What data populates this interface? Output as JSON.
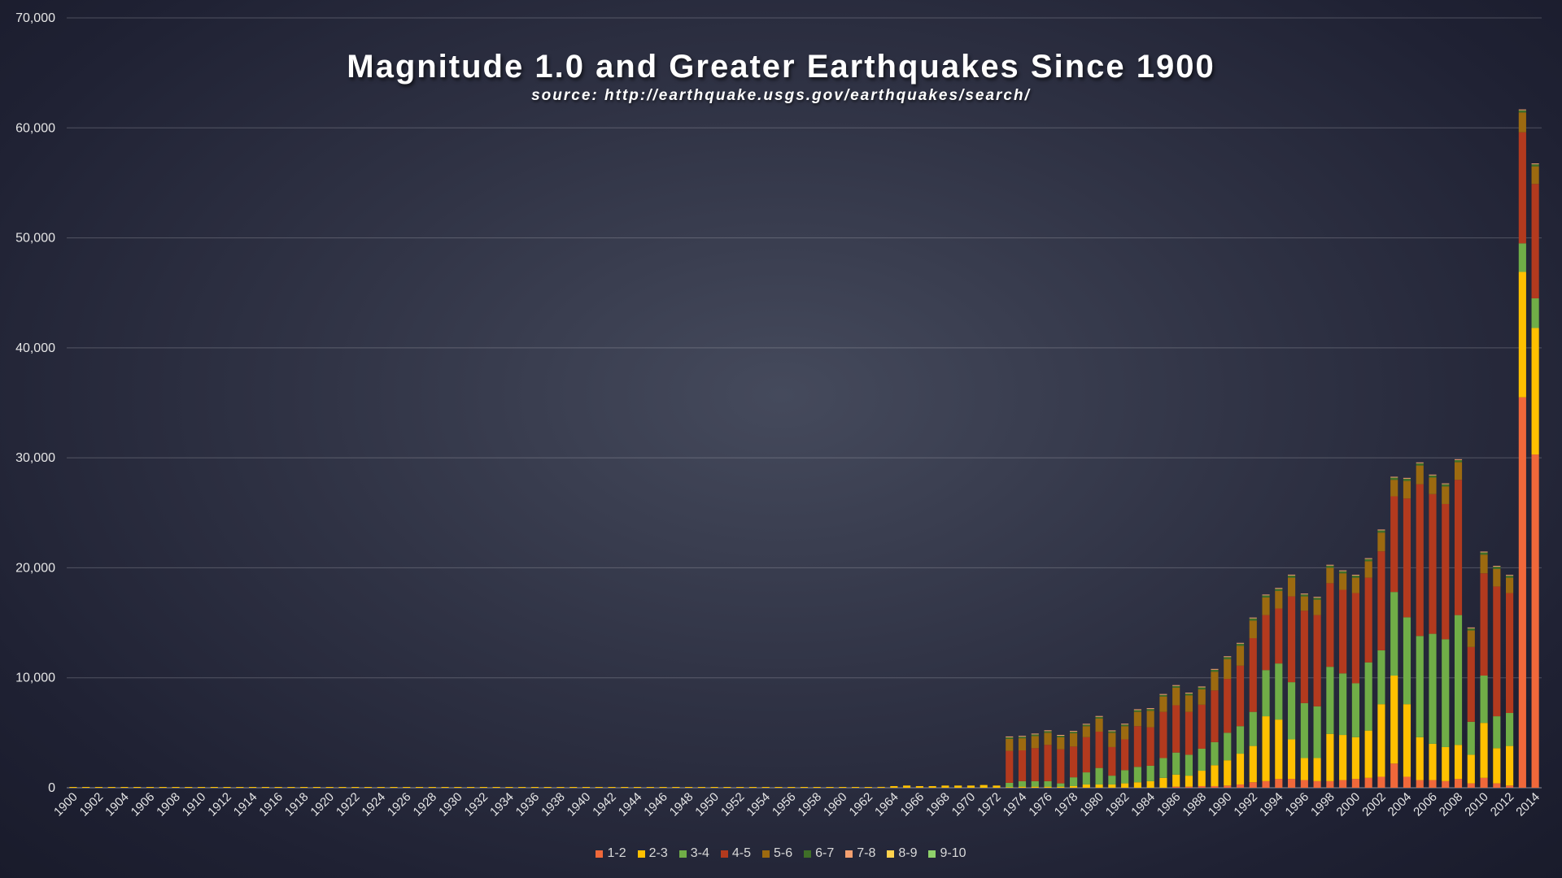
{
  "chart_data": {
    "type": "bar",
    "stacked": true,
    "title": "Magnitude 1.0 and Greater Earthquakes Since 1900",
    "subtitle": "source: http://earthquake.usgs.gov/earthquakes/search/",
    "xlabel": "",
    "ylabel": "",
    "ylim": [
      0,
      70000
    ],
    "yticks": [
      "0",
      "10,000",
      "20,000",
      "30,000",
      "40,000",
      "50,000",
      "60,000",
      "70,000"
    ],
    "grid": true,
    "legend_position": "bottom",
    "categories": [
      1900,
      1901,
      1902,
      1903,
      1904,
      1905,
      1906,
      1907,
      1908,
      1909,
      1910,
      1911,
      1912,
      1913,
      1914,
      1915,
      1916,
      1917,
      1918,
      1919,
      1920,
      1921,
      1922,
      1923,
      1924,
      1925,
      1926,
      1927,
      1928,
      1929,
      1930,
      1931,
      1932,
      1933,
      1934,
      1935,
      1936,
      1937,
      1938,
      1939,
      1940,
      1941,
      1942,
      1943,
      1944,
      1945,
      1946,
      1947,
      1948,
      1949,
      1950,
      1951,
      1952,
      1953,
      1954,
      1955,
      1956,
      1957,
      1958,
      1959,
      1960,
      1961,
      1962,
      1963,
      1964,
      1965,
      1966,
      1967,
      1968,
      1969,
      1970,
      1971,
      1972,
      1973,
      1974,
      1975,
      1976,
      1977,
      1978,
      1979,
      1980,
      1981,
      1982,
      1983,
      1984,
      1985,
      1986,
      1987,
      1988,
      1989,
      1990,
      1991,
      1992,
      1993,
      1994,
      1995,
      1996,
      1997,
      1998,
      1999,
      2000,
      2001,
      2002,
      2003,
      2004,
      2005,
      2006,
      2007,
      2008,
      2009,
      2010,
      2011,
      2012,
      2013,
      2014
    ],
    "x_tick_labels": [
      "1900",
      "1902",
      "1904",
      "1906",
      "1908",
      "1910",
      "1912",
      "1914",
      "1916",
      "1918",
      "1920",
      "1922",
      "1924",
      "1926",
      "1928",
      "1930",
      "1932",
      "1934",
      "1936",
      "1938",
      "1940",
      "1942",
      "1944",
      "1946",
      "1948",
      "1950",
      "1952",
      "1954",
      "1956",
      "1958",
      "1960",
      "1962",
      "1964",
      "1966",
      "1968",
      "1970",
      "1972",
      "1974",
      "1976",
      "1978",
      "1980",
      "1982",
      "1984",
      "1986",
      "1988",
      "1990",
      "1992",
      "1994",
      "1996",
      "1998",
      "2000",
      "2002",
      "2004",
      "2006",
      "2008",
      "2010",
      "2012",
      "2014"
    ],
    "series": [
      {
        "name": "1-2",
        "color": "#f0683a",
        "values": [
          0,
          0,
          0,
          0,
          0,
          0,
          0,
          0,
          0,
          0,
          0,
          0,
          0,
          0,
          0,
          0,
          0,
          0,
          0,
          0,
          0,
          0,
          0,
          0,
          0,
          0,
          0,
          0,
          0,
          0,
          0,
          0,
          0,
          0,
          0,
          0,
          0,
          0,
          0,
          0,
          0,
          0,
          0,
          0,
          0,
          0,
          0,
          0,
          0,
          0,
          0,
          0,
          0,
          0,
          0,
          0,
          0,
          0,
          0,
          0,
          0,
          0,
          0,
          0,
          0,
          0,
          0,
          0,
          0,
          0,
          0,
          0,
          0,
          0,
          0,
          0,
          0,
          0,
          0,
          0,
          0,
          0,
          0,
          0,
          0,
          0,
          100,
          100,
          150,
          150,
          200,
          300,
          500,
          600,
          800,
          800,
          700,
          600,
          600,
          700,
          800,
          900,
          1000,
          2200,
          1000,
          700,
          700,
          600,
          800,
          400,
          900,
          400,
          200,
          35500,
          30300
        ]
      },
      {
        "name": "2-3",
        "color": "#ffc000",
        "values": [
          20,
          15,
          40,
          60,
          50,
          40,
          50,
          60,
          70,
          50,
          60,
          40,
          50,
          40,
          30,
          20,
          20,
          40,
          60,
          60,
          50,
          40,
          40,
          50,
          60,
          50,
          40,
          50,
          50,
          40,
          40,
          50,
          50,
          60,
          40,
          40,
          50,
          50,
          40,
          40,
          50,
          40,
          50,
          40,
          40,
          40,
          40,
          40,
          50,
          50,
          50,
          40,
          40,
          40,
          40,
          40,
          50,
          50,
          50,
          50,
          50,
          60,
          70,
          80,
          150,
          200,
          150,
          150,
          200,
          200,
          200,
          250,
          200,
          50,
          100,
          100,
          100,
          100,
          150,
          300,
          300,
          300,
          400,
          500,
          600,
          900,
          1100,
          1000,
          1400,
          1900,
          2300,
          2800,
          3300,
          5900,
          5400,
          3600,
          2000,
          2100,
          4300,
          4100,
          3800,
          4300,
          6600,
          8000,
          6600,
          3900,
          3300,
          3100,
          3100,
          2600,
          5000,
          3200,
          3600,
          11400,
          11500
        ]
      },
      {
        "name": "3-4",
        "color": "#70ad47",
        "values": [
          0,
          0,
          0,
          0,
          0,
          0,
          0,
          0,
          0,
          0,
          0,
          0,
          0,
          0,
          0,
          0,
          0,
          0,
          0,
          0,
          0,
          0,
          0,
          0,
          0,
          0,
          0,
          0,
          0,
          0,
          0,
          0,
          0,
          0,
          0,
          0,
          0,
          0,
          0,
          0,
          0,
          0,
          0,
          0,
          0,
          0,
          0,
          0,
          0,
          0,
          0,
          0,
          0,
          0,
          0,
          0,
          0,
          0,
          0,
          0,
          0,
          0,
          0,
          0,
          0,
          0,
          0,
          0,
          0,
          0,
          0,
          0,
          0,
          400,
          500,
          500,
          500,
          300,
          800,
          1100,
          1500,
          800,
          1200,
          1400,
          1400,
          1800,
          2000,
          1900,
          2000,
          2100,
          2500,
          2500,
          3100,
          4200,
          5100,
          5200,
          5000,
          4700,
          6100,
          5600,
          4900,
          6200,
          4900,
          7600,
          7900,
          9200,
          10000,
          9800,
          11800,
          3000,
          4300,
          2900,
          3000,
          2600,
          2700
        ]
      },
      {
        "name": "4-5",
        "color": "#b33a1e",
        "values": [
          0,
          0,
          0,
          0,
          0,
          0,
          0,
          0,
          0,
          0,
          0,
          0,
          0,
          0,
          0,
          0,
          0,
          0,
          0,
          0,
          0,
          0,
          0,
          0,
          0,
          0,
          0,
          0,
          0,
          0,
          0,
          0,
          0,
          0,
          0,
          0,
          0,
          0,
          0,
          0,
          0,
          0,
          0,
          0,
          0,
          0,
          0,
          0,
          0,
          0,
          0,
          0,
          0,
          0,
          0,
          0,
          0,
          0,
          0,
          0,
          0,
          0,
          0,
          0,
          0,
          0,
          0,
          0,
          0,
          0,
          0,
          0,
          0,
          2900,
          2800,
          3000,
          3300,
          3100,
          2800,
          3200,
          3300,
          2600,
          2800,
          3700,
          3500,
          4200,
          4300,
          3900,
          4000,
          4700,
          4900,
          5500,
          6700,
          5000,
          5000,
          7800,
          8400,
          8300,
          7600,
          7600,
          8200,
          7700,
          9000,
          8700,
          10800,
          13800,
          12700,
          12300,
          12300,
          6800,
          9300,
          11800,
          10900,
          10100,
          10400
        ]
      },
      {
        "name": "5-6",
        "color": "#9c6a10",
        "values": [
          0,
          0,
          0,
          0,
          0,
          0,
          0,
          0,
          0,
          0,
          0,
          0,
          0,
          0,
          0,
          0,
          0,
          0,
          0,
          0,
          0,
          0,
          0,
          0,
          0,
          0,
          0,
          0,
          0,
          0,
          0,
          0,
          0,
          0,
          0,
          0,
          0,
          0,
          0,
          0,
          0,
          0,
          0,
          0,
          0,
          0,
          0,
          0,
          0,
          0,
          0,
          0,
          0,
          0,
          0,
          0,
          0,
          0,
          0,
          0,
          0,
          0,
          0,
          0,
          0,
          0,
          0,
          0,
          0,
          0,
          0,
          0,
          0,
          1100,
          1100,
          1100,
          1100,
          1100,
          1200,
          1000,
          1200,
          1300,
          1200,
          1300,
          1500,
          1400,
          1600,
          1500,
          1400,
          1700,
          1800,
          1800,
          1600,
          1600,
          1600,
          1700,
          1300,
          1400,
          1400,
          1500,
          1400,
          1500,
          1700,
          1500,
          1600,
          1700,
          1500,
          1600,
          1600,
          1500,
          1700,
          1600,
          1400,
          1800,
          1600
        ]
      },
      {
        "name": "6-7",
        "color": "#3f6f28",
        "values": [
          0,
          0,
          0,
          0,
          0,
          0,
          0,
          0,
          0,
          0,
          0,
          0,
          0,
          0,
          0,
          0,
          0,
          0,
          0,
          0,
          0,
          0,
          0,
          0,
          0,
          0,
          0,
          0,
          0,
          0,
          0,
          0,
          0,
          0,
          0,
          0,
          0,
          0,
          0,
          0,
          0,
          0,
          0,
          0,
          0,
          0,
          0,
          0,
          0,
          0,
          0,
          0,
          0,
          0,
          0,
          0,
          0,
          0,
          0,
          0,
          0,
          0,
          0,
          0,
          0,
          0,
          0,
          0,
          0,
          0,
          0,
          0,
          0,
          140,
          140,
          150,
          150,
          130,
          140,
          140,
          150,
          140,
          150,
          160,
          160,
          150,
          160,
          170,
          180,
          180,
          180,
          200,
          200,
          190,
          190,
          200,
          180,
          180,
          200,
          190,
          190,
          200,
          200,
          200,
          200,
          210,
          200,
          200,
          200,
          200,
          200,
          200,
          180,
          200,
          190
        ]
      },
      {
        "name": "7-8",
        "color": "#f4a070",
        "values": [
          0,
          0,
          0,
          0,
          0,
          0,
          0,
          0,
          0,
          0,
          0,
          0,
          0,
          0,
          0,
          0,
          0,
          0,
          0,
          0,
          0,
          0,
          0,
          0,
          0,
          0,
          0,
          0,
          0,
          0,
          0,
          0,
          0,
          0,
          0,
          0,
          0,
          0,
          0,
          0,
          0,
          0,
          0,
          0,
          0,
          0,
          0,
          0,
          0,
          0,
          0,
          0,
          0,
          0,
          0,
          0,
          0,
          0,
          0,
          0,
          0,
          0,
          0,
          0,
          0,
          0,
          0,
          0,
          0,
          0,
          0,
          0,
          0,
          20,
          20,
          20,
          20,
          20,
          20,
          20,
          20,
          20,
          20,
          20,
          20,
          20,
          20,
          20,
          20,
          20,
          20,
          20,
          20,
          20,
          20,
          20,
          20,
          20,
          20,
          20,
          20,
          20,
          20,
          20,
          20,
          20,
          20,
          20,
          20,
          20,
          20,
          20,
          20,
          20,
          20
        ]
      },
      {
        "name": "8-9",
        "color": "#ffd24d",
        "values": [
          0,
          0,
          0,
          0,
          0,
          0,
          0,
          0,
          0,
          0,
          0,
          0,
          0,
          0,
          0,
          0,
          0,
          0,
          0,
          0,
          0,
          0,
          0,
          0,
          0,
          0,
          0,
          0,
          0,
          0,
          0,
          0,
          0,
          0,
          0,
          0,
          0,
          0,
          0,
          0,
          0,
          0,
          0,
          0,
          0,
          0,
          0,
          0,
          0,
          0,
          0,
          0,
          0,
          0,
          0,
          0,
          0,
          0,
          0,
          0,
          0,
          0,
          0,
          0,
          0,
          0,
          0,
          0,
          0,
          0,
          0,
          0,
          0,
          0,
          0,
          0,
          0,
          0,
          0,
          0,
          0,
          0,
          0,
          0,
          0,
          0,
          0,
          0,
          0,
          0,
          0,
          0,
          0,
          0,
          0,
          0,
          0,
          0,
          0,
          0,
          0,
          0,
          0,
          0,
          0,
          0,
          0,
          0,
          0,
          0,
          0,
          0,
          0,
          0,
          0
        ]
      },
      {
        "name": "9-10",
        "color": "#8fd16a",
        "values": [
          0,
          0,
          0,
          0,
          0,
          0,
          0,
          0,
          0,
          0,
          0,
          0,
          0,
          0,
          0,
          0,
          0,
          0,
          0,
          0,
          0,
          0,
          0,
          0,
          0,
          0,
          0,
          0,
          0,
          0,
          0,
          0,
          0,
          0,
          0,
          0,
          0,
          0,
          0,
          0,
          0,
          0,
          0,
          0,
          0,
          0,
          0,
          0,
          0,
          0,
          0,
          0,
          0,
          0,
          0,
          0,
          0,
          0,
          0,
          0,
          0,
          0,
          0,
          0,
          0,
          0,
          0,
          0,
          0,
          0,
          0,
          0,
          0,
          0,
          0,
          0,
          0,
          0,
          0,
          0,
          0,
          0,
          0,
          0,
          0,
          0,
          0,
          0,
          0,
          0,
          0,
          0,
          0,
          0,
          0,
          0,
          0,
          0,
          0,
          0,
          0,
          0,
          0,
          0,
          0,
          0,
          0,
          0,
          0,
          0,
          0,
          0,
          0,
          0,
          0
        ]
      }
    ]
  }
}
